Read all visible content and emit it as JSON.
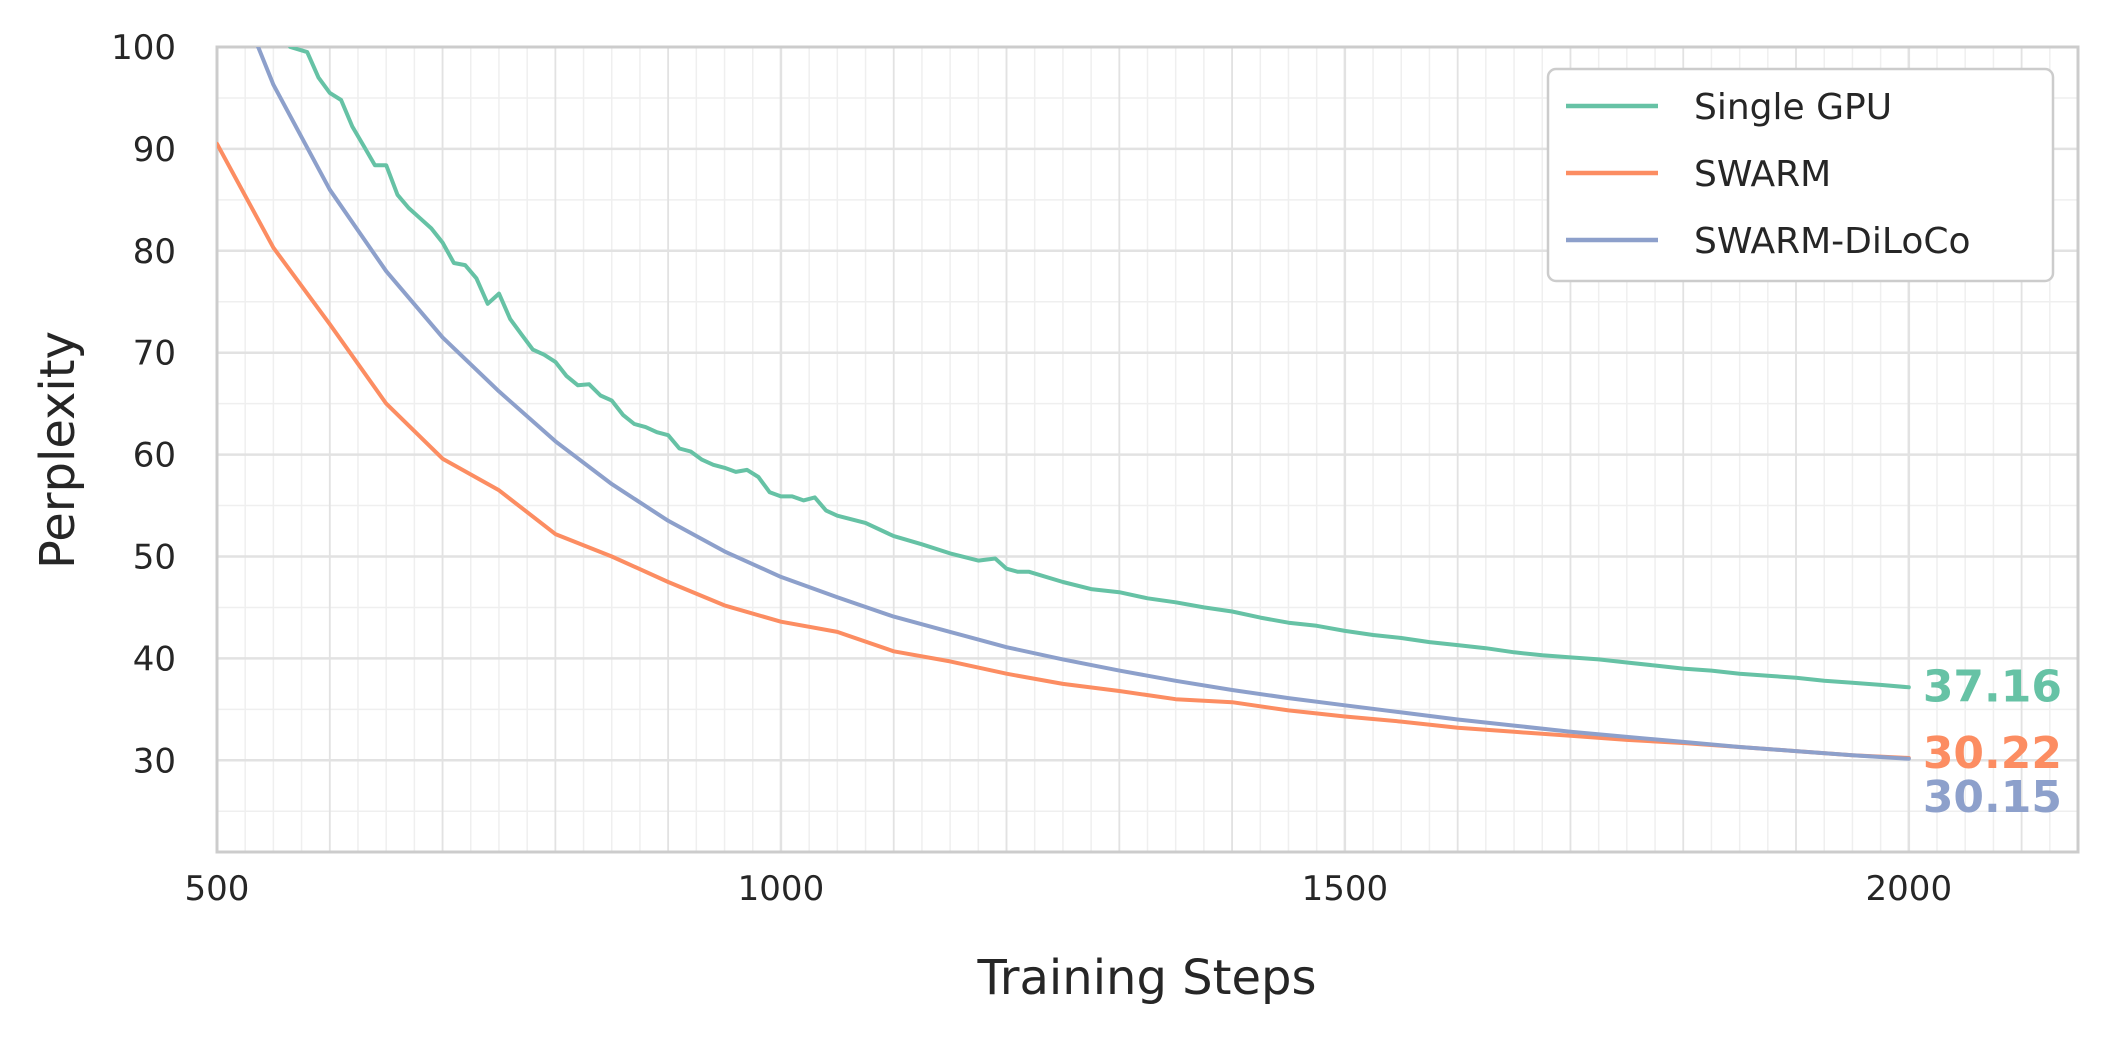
{
  "chart_data": {
    "type": "line",
    "title": "",
    "xlabel": "Training Steps",
    "ylabel": "Perplexity",
    "xlim": [
      500,
      2150
    ],
    "ylim": [
      21,
      100
    ],
    "x_ticks": [
      500,
      1000,
      1500,
      2000
    ],
    "y_ticks": [
      30,
      40,
      50,
      60,
      70,
      80,
      90,
      100
    ],
    "grid": true,
    "legend_position": "top-right",
    "series": [
      {
        "name": "Single GPU",
        "color": "#66c2a5",
        "end_label": "37.16",
        "x": [
          500,
          550,
          565,
          580,
          590,
          600,
          610,
          620,
          630,
          640,
          650,
          660,
          670,
          680,
          690,
          700,
          710,
          720,
          730,
          740,
          750,
          760,
          770,
          780,
          790,
          800,
          810,
          820,
          830,
          840,
          850,
          860,
          870,
          880,
          890,
          900,
          910,
          920,
          930,
          940,
          950,
          960,
          970,
          980,
          990,
          1000,
          1010,
          1020,
          1030,
          1040,
          1050,
          1075,
          1100,
          1125,
          1150,
          1175,
          1190,
          1200,
          1210,
          1220,
          1250,
          1275,
          1300,
          1325,
          1350,
          1375,
          1400,
          1425,
          1450,
          1475,
          1500,
          1525,
          1550,
          1575,
          1600,
          1625,
          1650,
          1675,
          1700,
          1725,
          1750,
          1775,
          1800,
          1825,
          1850,
          1875,
          1900,
          1925,
          1950,
          1975,
          2000
        ],
        "values": [
          120,
          103,
          100,
          99.5,
          97,
          95.5,
          94.8,
          92.2,
          90.3,
          88.4,
          88.4,
          85.5,
          84.2,
          83.2,
          82.2,
          80.8,
          78.8,
          78.6,
          77.3,
          74.8,
          75.8,
          73.3,
          71.8,
          70.3,
          69.8,
          69.1,
          67.7,
          66.8,
          66.9,
          65.8,
          65.3,
          63.9,
          63.0,
          62.7,
          62.2,
          61.9,
          60.6,
          60.3,
          59.5,
          59.0,
          58.7,
          58.3,
          58.5,
          57.8,
          56.3,
          55.9,
          55.9,
          55.5,
          55.8,
          54.5,
          54.0,
          53.3,
          52.0,
          51.2,
          50.3,
          49.6,
          49.8,
          48.8,
          48.5,
          48.5,
          47.5,
          46.8,
          46.5,
          45.9,
          45.5,
          45.0,
          44.6,
          44.0,
          43.5,
          43.2,
          42.7,
          42.3,
          42.0,
          41.6,
          41.3,
          41.0,
          40.6,
          40.3,
          40.1,
          39.9,
          39.6,
          39.3,
          39.0,
          38.8,
          38.5,
          38.3,
          38.1,
          37.8,
          37.6,
          37.4,
          37.16
        ]
      },
      {
        "name": "SWARM",
        "color": "#fc8d62",
        "end_label": "30.22",
        "x": [
          500,
          550,
          600,
          650,
          700,
          750,
          800,
          850,
          900,
          950,
          1000,
          1050,
          1100,
          1150,
          1200,
          1250,
          1300,
          1350,
          1400,
          1450,
          1500,
          1550,
          1600,
          1650,
          1700,
          1750,
          1800,
          1850,
          1900,
          1950,
          2000
        ],
        "values": [
          90.5,
          80.3,
          72.8,
          65.0,
          59.6,
          56.5,
          52.2,
          50.0,
          47.5,
          45.2,
          43.6,
          42.6,
          40.7,
          39.7,
          38.5,
          37.5,
          36.8,
          36.0,
          35.7,
          34.9,
          34.3,
          33.8,
          33.2,
          32.8,
          32.4,
          32.0,
          31.7,
          31.3,
          30.9,
          30.5,
          30.22
        ]
      },
      {
        "name": "SWARM-DiLoCo",
        "color": "#8da0cb",
        "end_label": "30.15",
        "x": [
          500,
          550,
          600,
          650,
          700,
          750,
          800,
          850,
          900,
          950,
          1000,
          1050,
          1100,
          1150,
          1200,
          1250,
          1300,
          1350,
          1400,
          1450,
          1500,
          1550,
          1600,
          1650,
          1700,
          1750,
          1800,
          1850,
          1900,
          1950,
          2000
        ],
        "values": [
          110,
          96.3,
          86.0,
          78.0,
          71.5,
          66.2,
          61.3,
          57.1,
          53.5,
          50.5,
          48.0,
          46.0,
          44.1,
          42.6,
          41.1,
          39.9,
          38.8,
          37.8,
          36.9,
          36.1,
          35.4,
          34.7,
          34.0,
          33.4,
          32.8,
          32.3,
          31.8,
          31.3,
          30.9,
          30.5,
          30.15
        ]
      }
    ]
  }
}
